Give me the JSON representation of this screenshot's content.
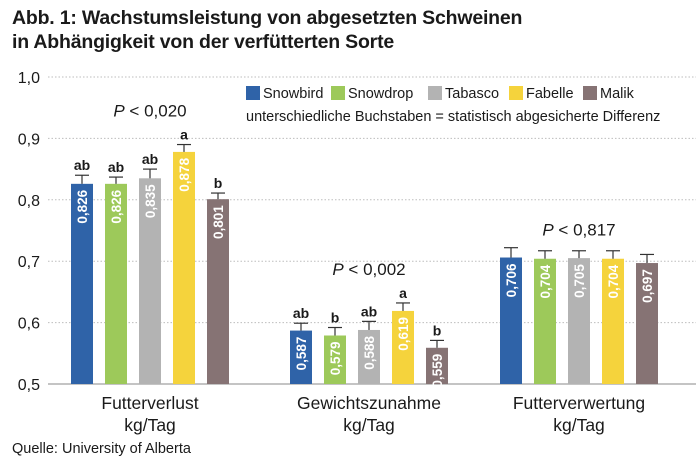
{
  "title_line1": "Abb. 1: Wachstumsleistung von abgesetzten Schweinen",
  "title_line2": "in Abhängigkeit von der verfütterten Sorte",
  "source": "Quelle: University of Alberta",
  "legend_note": "unterschiedliche Buchstaben = statistisch abgesicherte Differenz",
  "colors": {
    "Snowbird": "#2f63a8",
    "Snowdrop": "#9dc95a",
    "Tabasco": "#b3b3b3",
    "Fabelle": "#f5d33c",
    "Malik": "#867374"
  },
  "chart_data": {
    "type": "bar",
    "ylim": [
      0.5,
      1.0
    ],
    "yticks": [
      "0,5",
      "0,6",
      "0,7",
      "0,8",
      "0,9",
      "1,0"
    ],
    "grid": true,
    "legend_position": "top-right",
    "series_names": [
      "Snowbird",
      "Snowdrop",
      "Tabasco",
      "Fabelle",
      "Malik"
    ],
    "groups": [
      {
        "label1": "Futterverlust",
        "label2": "kg/Tag",
        "p_text": "P < 0,020",
        "values": [
          0.826,
          0.826,
          0.835,
          0.878,
          0.801
        ],
        "errors": [
          0.014,
          0.011,
          0.015,
          0.012,
          0.01
        ],
        "value_labels": [
          "0,826",
          "0,826",
          "0,835",
          "0,878",
          "0,801"
        ],
        "letters": [
          "ab",
          "ab",
          "ab",
          "a",
          "b"
        ]
      },
      {
        "label1": "Gewichtszunahme",
        "label2": "kg/Tag",
        "p_text": "P < 0,002",
        "values": [
          0.587,
          0.579,
          0.588,
          0.619,
          0.559
        ],
        "errors": [
          0.012,
          0.013,
          0.014,
          0.013,
          0.012
        ],
        "value_labels": [
          "0,587",
          "0,579",
          "0,588",
          "0,619",
          "0,559"
        ],
        "letters": [
          "ab",
          "b",
          "ab",
          "a",
          "b"
        ]
      },
      {
        "label1": "Futterverwertung",
        "label2": "kg/Tag",
        "p_text": "P < 0,817",
        "values": [
          0.706,
          0.704,
          0.705,
          0.704,
          0.697
        ],
        "errors": [
          0.016,
          0.013,
          0.012,
          0.013,
          0.014
        ],
        "value_labels": [
          "0,706",
          "0,704",
          "0,705",
          "0,704",
          "0,697"
        ],
        "letters": [
          "",
          "",
          "",
          "",
          ""
        ]
      }
    ]
  }
}
